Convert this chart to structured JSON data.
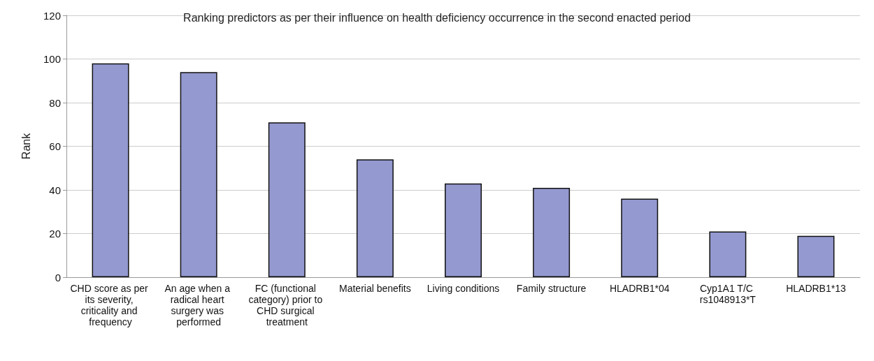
{
  "chart_data": {
    "type": "bar",
    "title": "Ranking predictors as per their influence on health deficiency occurrence in the second enacted period",
    "ylabel": "Rank",
    "categories": [
      "CHD score as per its severity, criticality and frequency",
      "An age when a radical heart surgery was performed",
      "FC (functional category) prior to CHD surgical treatment",
      "Material benefits",
      "Living conditions",
      "Family structure",
      "HLADRB1*04",
      "Cyp1A1 T/C rs1048913*T",
      "HLADRB1*13"
    ],
    "values": [
      98,
      94,
      71,
      54,
      43,
      41,
      36,
      21,
      19
    ],
    "color": "#9499d0",
    "ylim": [
      0,
      120
    ],
    "yticks": [
      0,
      20,
      40,
      60,
      80,
      100,
      120
    ],
    "grid": "y"
  }
}
